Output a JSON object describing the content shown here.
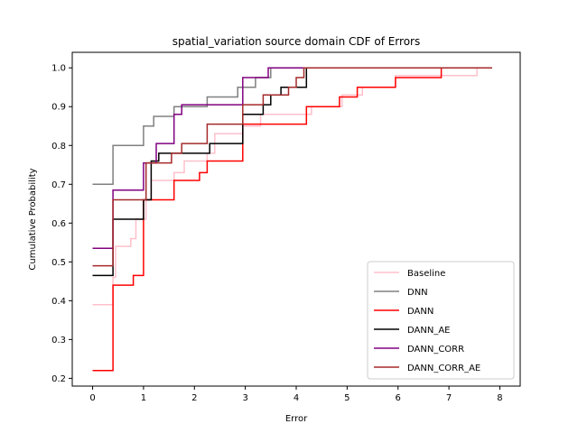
{
  "chart_data": {
    "type": "line",
    "title": "spatial_variation source domain CDF of Errors",
    "xlabel": "Error",
    "ylabel": "Cumulative Probability",
    "xlim": [
      -0.4,
      8.4
    ],
    "ylim": [
      0.18,
      1.04
    ],
    "xticks": [
      0,
      1,
      2,
      3,
      4,
      5,
      6,
      7,
      8
    ],
    "yticks": [
      0.2,
      0.3,
      0.4,
      0.5,
      0.6,
      0.7,
      0.8,
      0.9,
      1.0
    ],
    "xtick_labels": [
      "0",
      "1",
      "2",
      "3",
      "4",
      "5",
      "6",
      "7",
      "8"
    ],
    "ytick_labels": [
      "0.2",
      "0.3",
      "0.4",
      "0.5",
      "0.6",
      "0.7",
      "0.8",
      "0.9",
      "1.0"
    ],
    "grid": false,
    "legend_position": "lower-right",
    "series": [
      {
        "name": "Baseline",
        "color": "#ffc0cb",
        "x": [
          0,
          0.4,
          0.4,
          0.45,
          0.45,
          0.75,
          0.75,
          0.85,
          0.85,
          1.05,
          1.05,
          1.15,
          1.15,
          1.6,
          1.6,
          1.8,
          1.8,
          2.25,
          2.25,
          2.4,
          2.4,
          2.95,
          2.95,
          3.3,
          3.3,
          3.6,
          3.6,
          4.3,
          4.3,
          4.9,
          4.9,
          5.3,
          5.3,
          5.95,
          5.95,
          6.9,
          6.9,
          7.55,
          7.55,
          7.85
        ],
        "y": [
          0.39,
          0.39,
          0.46,
          0.46,
          0.54,
          0.54,
          0.56,
          0.56,
          0.61,
          0.61,
          0.66,
          0.66,
          0.71,
          0.71,
          0.73,
          0.73,
          0.76,
          0.76,
          0.78,
          0.78,
          0.83,
          0.83,
          0.85,
          0.85,
          0.88,
          0.88,
          0.88,
          0.88,
          0.9,
          0.9,
          0.93,
          0.93,
          0.95,
          0.95,
          0.98,
          0.98,
          0.98,
          0.98,
          1.0,
          1.0
        ]
      },
      {
        "name": "DNN",
        "color": "#808080",
        "x": [
          0,
          0.4,
          0.4,
          1.0,
          1.0,
          1.2,
          1.2,
          1.6,
          1.6,
          1.75,
          1.75,
          2.25,
          2.25,
          2.85,
          2.85,
          3.2,
          3.2,
          3.5,
          3.5,
          7.85
        ],
        "y": [
          0.7,
          0.7,
          0.8,
          0.8,
          0.85,
          0.85,
          0.875,
          0.875,
          0.9,
          0.9,
          0.9,
          0.9,
          0.925,
          0.925,
          0.95,
          0.95,
          0.975,
          0.975,
          1.0,
          1.0
        ]
      },
      {
        "name": "DANN",
        "color": "#ff0000",
        "x": [
          0,
          0.4,
          0.4,
          0.65,
          0.65,
          0.8,
          0.8,
          1.0,
          1.0,
          1.6,
          1.6,
          1.95,
          1.95,
          2.1,
          2.1,
          2.25,
          2.25,
          2.4,
          2.4,
          2.95,
          2.95,
          4.2,
          4.2,
          4.85,
          4.85,
          5.2,
          5.2,
          5.95,
          5.95,
          6.85,
          6.85,
          6.95,
          6.95,
          7.85
        ],
        "y": [
          0.22,
          0.22,
          0.44,
          0.44,
          0.44,
          0.44,
          0.465,
          0.465,
          0.66,
          0.66,
          0.71,
          0.71,
          0.71,
          0.71,
          0.73,
          0.73,
          0.76,
          0.76,
          0.76,
          0.76,
          0.855,
          0.855,
          0.9,
          0.9,
          0.925,
          0.925,
          0.95,
          0.95,
          0.975,
          0.975,
          1.0,
          1.0,
          1.0,
          1.0
        ]
      },
      {
        "name": "DANN_AE",
        "color": "#000000",
        "x": [
          0,
          0.4,
          0.4,
          1.0,
          1.0,
          1.15,
          1.15,
          1.3,
          1.3,
          2.3,
          2.3,
          2.95,
          2.95,
          3.35,
          3.35,
          3.5,
          3.5,
          3.7,
          3.7,
          4.2,
          4.2,
          7.85
        ],
        "y": [
          0.465,
          0.465,
          0.61,
          0.61,
          0.66,
          0.66,
          0.76,
          0.76,
          0.78,
          0.78,
          0.805,
          0.805,
          0.88,
          0.88,
          0.905,
          0.905,
          0.93,
          0.93,
          0.95,
          0.95,
          1.0,
          1.0
        ]
      },
      {
        "name": "DANN_CORR",
        "color": "#800080",
        "x": [
          0,
          0.4,
          0.4,
          1.0,
          1.0,
          1.25,
          1.25,
          1.6,
          1.6,
          1.75,
          1.75,
          2.95,
          2.95,
          3.45,
          3.45,
          7.85
        ],
        "y": [
          0.535,
          0.535,
          0.685,
          0.685,
          0.755,
          0.755,
          0.805,
          0.805,
          0.88,
          0.88,
          0.905,
          0.905,
          0.975,
          0.975,
          1.0,
          1.0
        ]
      },
      {
        "name": "DANN_CORR_AE",
        "color": "#a52a2a",
        "x": [
          0,
          0.4,
          0.4,
          1.05,
          1.05,
          1.55,
          1.55,
          1.75,
          1.75,
          2.25,
          2.25,
          2.95,
          2.95,
          3.35,
          3.35,
          3.5,
          3.5,
          3.85,
          3.85,
          4.0,
          4.0,
          4.15,
          4.15,
          7.85
        ],
        "y": [
          0.49,
          0.49,
          0.66,
          0.66,
          0.755,
          0.755,
          0.78,
          0.78,
          0.805,
          0.805,
          0.855,
          0.855,
          0.905,
          0.905,
          0.93,
          0.93,
          0.93,
          0.93,
          0.95,
          0.95,
          0.975,
          0.975,
          1.0,
          1.0
        ]
      }
    ]
  }
}
